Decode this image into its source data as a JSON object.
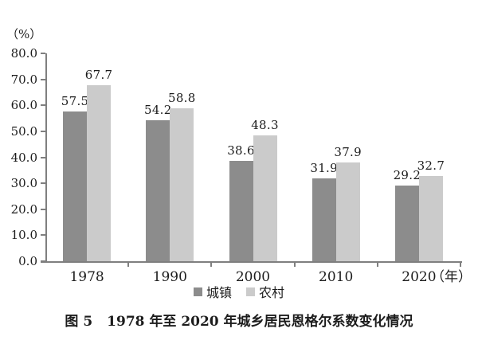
{
  "figure": {
    "y_unit_label": "（%）",
    "x_unit_label": "（年）"
  },
  "chart_data": {
    "type": "bar",
    "title": "图 5　1978 年至 2020 年城乡居民恩格尔系数变化情况",
    "xlabel": "（年）",
    "ylabel": "（%）",
    "categories": [
      "1978",
      "1990",
      "2000",
      "2010",
      "2020"
    ],
    "series": [
      {
        "key": "urban",
        "name": "城镇",
        "color": "#8c8c8c",
        "values": [
          57.5,
          54.2,
          38.6,
          31.9,
          29.2
        ]
      },
      {
        "key": "rural",
        "name": "农村",
        "color": "#cbcbcb",
        "values": [
          67.7,
          58.8,
          48.3,
          37.9,
          32.7
        ]
      }
    ],
    "ylim": [
      0,
      80
    ],
    "yticks": [
      0,
      10,
      20,
      30,
      40,
      50,
      60,
      70,
      80
    ],
    "ytick_labels": [
      "0.0",
      "10.0",
      "20.0",
      "30.0",
      "40.0",
      "50.0",
      "60.0",
      "70.0",
      "80.0"
    ],
    "grid": false,
    "legend_position": "bottom",
    "value_labels": true
  },
  "caption": {
    "figure_label": "图 5",
    "title": "1978 年至 2020 年城乡居民恩格尔系数变化情况"
  },
  "colors": {
    "axis": "#7f7f7f",
    "text": "#1c1c1c"
  }
}
